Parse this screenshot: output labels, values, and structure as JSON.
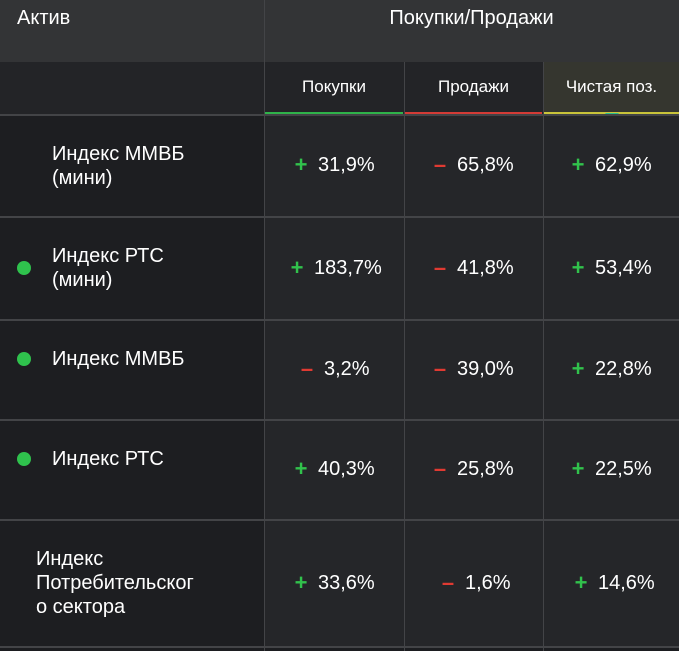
{
  "header": {
    "asset_title": "Актив",
    "group_title": "Покупки/Продажи",
    "columns": {
      "buy": "Покупки",
      "sell": "Продажи",
      "net": "Чистая поз."
    }
  },
  "colors": {
    "positive": "#31c24c",
    "negative": "#e03a32",
    "status_dot": "#2fc24d",
    "net_underline": "#c9c43a"
  },
  "rows": [
    {
      "name_line1": "Индекс ММВБ",
      "name_line2": "(мини)",
      "name_line3": "",
      "has_dot": true,
      "buy_sign": "+",
      "buy": "31,9%",
      "sell_sign": "–",
      "sell": "65,8%",
      "net_sign": "+",
      "net": "62,9%"
    },
    {
      "name_line1": "Индекс РТС",
      "name_line2": "(мини)",
      "name_line3": "",
      "has_dot": true,
      "buy_sign": "+",
      "buy": "183,7%",
      "sell_sign": "–",
      "sell": "41,8%",
      "net_sign": "+",
      "net": "53,4%"
    },
    {
      "name_line1": "Индекс ММВБ",
      "name_line2": "",
      "name_line3": "",
      "has_dot": true,
      "buy_sign": "–",
      "buy": "3,2%",
      "sell_sign": "–",
      "sell": "39,0%",
      "net_sign": "+",
      "net": "22,8%"
    },
    {
      "name_line1": "Индекс РТС",
      "name_line2": "",
      "name_line3": "",
      "has_dot": true,
      "buy_sign": "+",
      "buy": "40,3%",
      "sell_sign": "–",
      "sell": "25,8%",
      "net_sign": "+",
      "net": "22,5%"
    },
    {
      "name_line1": "Индекс",
      "name_line2": "Потребительског",
      "name_line3": "о сектора",
      "has_dot": false,
      "buy_sign": "+",
      "buy": "33,6%",
      "sell_sign": "–",
      "sell": "1,6%",
      "net_sign": "+",
      "net": "14,6%"
    }
  ]
}
